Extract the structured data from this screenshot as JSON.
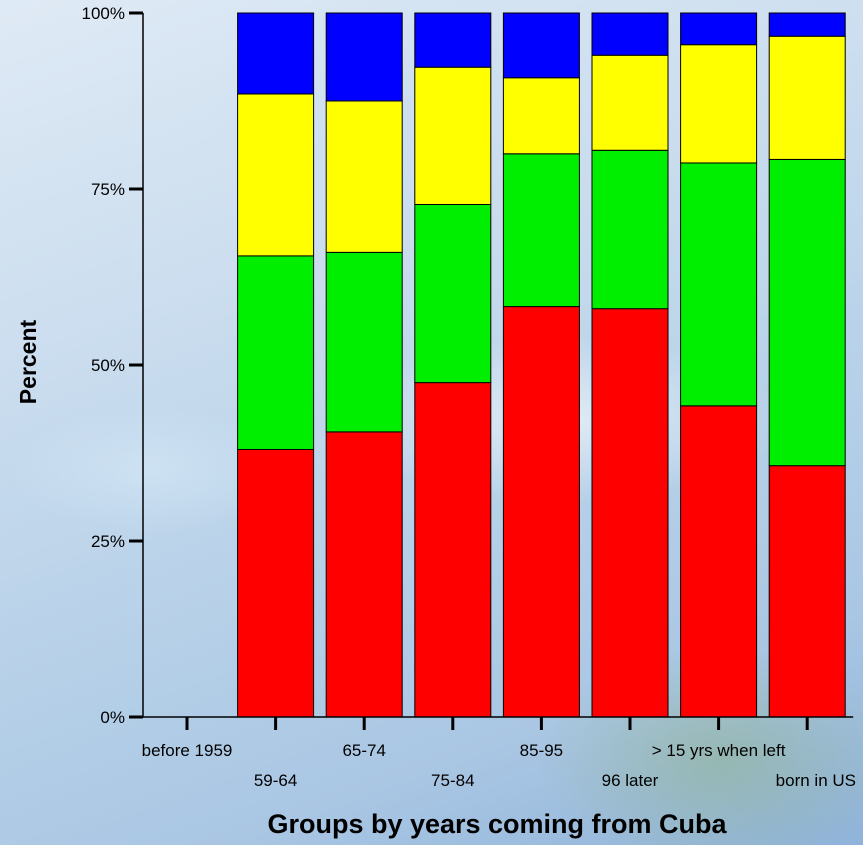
{
  "chart_data": {
    "type": "bar",
    "stacked": true,
    "normalized": true,
    "title": "",
    "xlabel": "Groups by years coming from Cuba",
    "ylabel": "Percent",
    "ylim": [
      0,
      100
    ],
    "yticks": [
      "0%",
      "25%",
      "50%",
      "75%",
      "100%"
    ],
    "categories": [
      "before 1959",
      "59-64",
      "65-74",
      "75-84",
      "85-95",
      "96 later",
      "> 15 yrs when left",
      "born in US"
    ],
    "series": [
      {
        "color": "#ff0000",
        "values": [
          0,
          38.0,
          40.5,
          47.5,
          58.3,
          58.0,
          44.2,
          35.7
        ]
      },
      {
        "color": "#00ee00",
        "values": [
          0,
          27.5,
          25.5,
          25.3,
          21.7,
          22.5,
          34.5,
          43.5
        ]
      },
      {
        "color": "#ffff00",
        "values": [
          0,
          23.0,
          21.5,
          19.5,
          10.8,
          13.5,
          16.8,
          17.5
        ]
      },
      {
        "color": "#0000ff",
        "values": [
          0,
          11.5,
          12.5,
          7.7,
          9.2,
          6.0,
          4.5,
          3.3
        ]
      }
    ],
    "grid": false,
    "legend": "none"
  }
}
